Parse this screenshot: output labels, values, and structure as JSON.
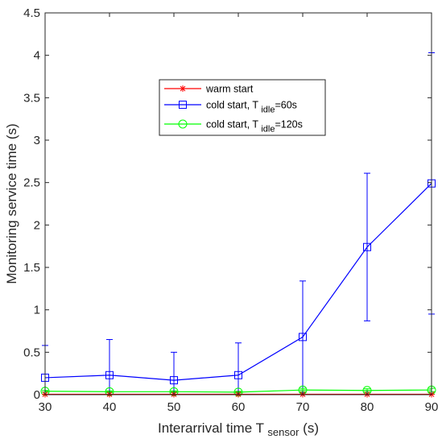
{
  "chart_data": {
    "type": "line",
    "x": [
      30,
      40,
      50,
      60,
      70,
      80,
      90
    ],
    "xlim": [
      30,
      90
    ],
    "ylim": [
      0,
      4.5
    ],
    "xticks": [
      "30",
      "40",
      "50",
      "60",
      "70",
      "80",
      "90"
    ],
    "yticks": [
      "0",
      "0.5",
      "1",
      "1.5",
      "2",
      "2.5",
      "3",
      "3.5",
      "4",
      "4.5"
    ],
    "xlabel": "Interarrival time T",
    "xlabel_sub": "sensor",
    "xlabel_unit": " (s)",
    "ylabel": "Monitoring service time (s)",
    "grid": false,
    "legend_position": "top-center",
    "series": [
      {
        "name": "warm start",
        "name_parts": [
          "warm start"
        ],
        "color": "#ff0000",
        "marker": "star",
        "values": [
          0.005,
          0.005,
          0.005,
          0.005,
          0.005,
          0.005,
          0.005
        ],
        "errors": [
          0,
          0,
          0,
          0,
          0,
          0,
          0
        ]
      },
      {
        "name": "cold start, T idle=60s",
        "name_parts": [
          "cold start, T ",
          "idle",
          "=60s"
        ],
        "color": "#0000ff",
        "marker": "square",
        "values": [
          0.2,
          0.23,
          0.17,
          0.23,
          0.68,
          1.74,
          2.49
        ],
        "errors": [
          0.38,
          0.42,
          0.33,
          0.38,
          0.66,
          0.87,
          1.54
        ]
      },
      {
        "name": "cold start, T idle=120s",
        "name_parts": [
          "cold start, T ",
          "idle",
          "=120s"
        ],
        "color": "#00ff00",
        "marker": "circle",
        "values": [
          0.04,
          0.035,
          0.035,
          0.03,
          0.055,
          0.05,
          0.055
        ],
        "errors": [
          0.01,
          0.01,
          0.01,
          0.01,
          0.02,
          0.02,
          0.02
        ]
      }
    ]
  }
}
